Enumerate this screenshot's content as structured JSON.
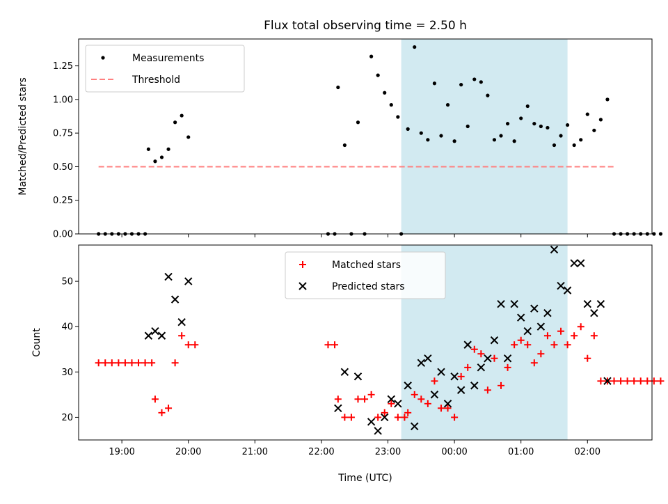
{
  "chart_data": {
    "title": "Flux total observing time = 2.50 h",
    "x_unit": "Time (UTC)",
    "x_ticks": [
      "19:00",
      "20:00",
      "21:00",
      "22:00",
      "23:00",
      "00:00",
      "01:00",
      "02:00"
    ],
    "highlight_span": {
      "start": "23:12",
      "end": "01:42",
      "color": "#add8e6"
    },
    "panels": [
      {
        "type": "scatter",
        "ylabel": "Matched/Predicted stars",
        "ylim": [
          0,
          1.45
        ],
        "yticks": [
          "0.00",
          "0.25",
          "0.50",
          "0.75",
          "1.00",
          "1.25"
        ],
        "legend_position": "upper-left",
        "series": [
          {
            "name": "Measurements",
            "marker": "dot",
            "color": "#000000",
            "points": [
              [
                "18:39",
                0
              ],
              [
                "18:45",
                0
              ],
              [
                "18:51",
                0
              ],
              [
                "18:57",
                0
              ],
              [
                "19:03",
                0
              ],
              [
                "19:09",
                0
              ],
              [
                "19:15",
                0
              ],
              [
                "19:21",
                0
              ],
              [
                "19:24",
                0.63
              ],
              [
                "19:30",
                0.54
              ],
              [
                "19:36",
                0.57
              ],
              [
                "19:42",
                0.63
              ],
              [
                "19:48",
                0.83
              ],
              [
                "19:54",
                0.88
              ],
              [
                "20:00",
                0.72
              ],
              [
                "22:06",
                0
              ],
              [
                "22:12",
                0
              ],
              [
                "22:15",
                1.09
              ],
              [
                "22:21",
                0.66
              ],
              [
                "22:27",
                0
              ],
              [
                "22:33",
                0.83
              ],
              [
                "22:39",
                0
              ],
              [
                "22:45",
                1.32
              ],
              [
                "22:51",
                1.18
              ],
              [
                "22:57",
                1.05
              ],
              [
                "23:03",
                0.96
              ],
              [
                "23:09",
                0.87
              ],
              [
                "23:12",
                0
              ],
              [
                "23:18",
                0.78
              ],
              [
                "23:24",
                1.39
              ],
              [
                "23:30",
                0.75
              ],
              [
                "23:36",
                0.7
              ],
              [
                "23:42",
                1.12
              ],
              [
                "23:48",
                0.73
              ],
              [
                "23:54",
                0.96
              ],
              [
                "00:00",
                0.69
              ],
              [
                "00:06",
                1.11
              ],
              [
                "00:12",
                0.8
              ],
              [
                "00:18",
                1.15
              ],
              [
                "00:24",
                1.13
              ],
              [
                "00:30",
                1.03
              ],
              [
                "00:36",
                0.7
              ],
              [
                "00:42",
                0.73
              ],
              [
                "00:48",
                0.82
              ],
              [
                "00:54",
                0.69
              ],
              [
                "01:00",
                0.86
              ],
              [
                "01:06",
                0.95
              ],
              [
                "01:12",
                0.82
              ],
              [
                "01:18",
                0.8
              ],
              [
                "01:24",
                0.79
              ],
              [
                "01:30",
                0.66
              ],
              [
                "01:36",
                0.73
              ],
              [
                "01:42",
                0.81
              ],
              [
                "01:48",
                0.66
              ],
              [
                "01:54",
                0.7
              ],
              [
                "02:00",
                0.89
              ],
              [
                "02:06",
                0.77
              ],
              [
                "02:12",
                0.85
              ],
              [
                "02:18",
                1.0
              ],
              [
                "02:24",
                0
              ],
              [
                "02:30",
                0
              ],
              [
                "02:36",
                0
              ],
              [
                "02:42",
                0
              ],
              [
                "02:48",
                0
              ],
              [
                "02:54",
                0
              ],
              [
                "03:00",
                0
              ],
              [
                "03:06",
                0
              ]
            ]
          },
          {
            "name": "Threshold",
            "type": "line",
            "style": "dashed",
            "color": "#ff8080",
            "points": [
              [
                "18:39",
                0.5
              ],
              [
                "02:24",
                0.5
              ]
            ]
          }
        ]
      },
      {
        "type": "scatter",
        "ylabel": "Count",
        "ylim": [
          15,
          58
        ],
        "yticks": [
          "20",
          "30",
          "40",
          "50"
        ],
        "legend_position": "upper-center",
        "series": [
          {
            "name": "Matched stars",
            "marker": "plus",
            "color": "#ff0000",
            "points": [
              [
                "18:39",
                32
              ],
              [
                "18:45",
                32
              ],
              [
                "18:51",
                32
              ],
              [
                "18:57",
                32
              ],
              [
                "19:03",
                32
              ],
              [
                "19:09",
                32
              ],
              [
                "19:15",
                32
              ],
              [
                "19:21",
                32
              ],
              [
                "19:27",
                32
              ],
              [
                "19:30",
                24
              ],
              [
                "19:36",
                21
              ],
              [
                "19:42",
                22
              ],
              [
                "19:48",
                32
              ],
              [
                "19:54",
                38
              ],
              [
                "20:00",
                36
              ],
              [
                "20:06",
                36
              ],
              [
                "22:06",
                36
              ],
              [
                "22:12",
                36
              ],
              [
                "22:15",
                24
              ],
              [
                "22:21",
                20
              ],
              [
                "22:27",
                20
              ],
              [
                "22:33",
                24
              ],
              [
                "22:39",
                24
              ],
              [
                "22:45",
                25
              ],
              [
                "22:51",
                20
              ],
              [
                "22:57",
                21
              ],
              [
                "23:03",
                23
              ],
              [
                "23:09",
                20
              ],
              [
                "23:15",
                20
              ],
              [
                "23:18",
                21
              ],
              [
                "23:24",
                25
              ],
              [
                "23:30",
                24
              ],
              [
                "23:36",
                23
              ],
              [
                "23:42",
                28
              ],
              [
                "23:48",
                22
              ],
              [
                "23:54",
                22
              ],
              [
                "00:00",
                20
              ],
              [
                "00:06",
                29
              ],
              [
                "00:12",
                31
              ],
              [
                "00:18",
                35
              ],
              [
                "00:24",
                34
              ],
              [
                "00:30",
                26
              ],
              [
                "00:36",
                33
              ],
              [
                "00:42",
                27
              ],
              [
                "00:48",
                31
              ],
              [
                "00:54",
                36
              ],
              [
                "01:00",
                37
              ],
              [
                "01:06",
                36
              ],
              [
                "01:12",
                32
              ],
              [
                "01:18",
                34
              ],
              [
                "01:24",
                38
              ],
              [
                "01:30",
                36
              ],
              [
                "01:36",
                39
              ],
              [
                "01:42",
                36
              ],
              [
                "01:48",
                38
              ],
              [
                "01:54",
                40
              ],
              [
                "02:00",
                33
              ],
              [
                "02:06",
                38
              ],
              [
                "02:12",
                28
              ],
              [
                "02:18",
                28
              ],
              [
                "02:24",
                28
              ],
              [
                "02:30",
                28
              ],
              [
                "02:36",
                28
              ],
              [
                "02:42",
                28
              ],
              [
                "02:48",
                28
              ],
              [
                "02:54",
                28
              ],
              [
                "03:00",
                28
              ],
              [
                "03:06",
                28
              ]
            ]
          },
          {
            "name": "Predicted stars",
            "marker": "x",
            "color": "#000000",
            "points": [
              [
                "19:24",
                38
              ],
              [
                "19:30",
                39
              ],
              [
                "19:36",
                38
              ],
              [
                "19:42",
                51
              ],
              [
                "19:48",
                46
              ],
              [
                "19:54",
                41
              ],
              [
                "20:00",
                50
              ],
              [
                "22:15",
                22
              ],
              [
                "22:21",
                30
              ],
              [
                "22:33",
                29
              ],
              [
                "22:45",
                19
              ],
              [
                "22:51",
                17
              ],
              [
                "22:57",
                20
              ],
              [
                "23:03",
                24
              ],
              [
                "23:09",
                23
              ],
              [
                "23:18",
                27
              ],
              [
                "23:24",
                18
              ],
              [
                "23:30",
                32
              ],
              [
                "23:36",
                33
              ],
              [
                "23:42",
                25
              ],
              [
                "23:48",
                30
              ],
              [
                "23:54",
                23
              ],
              [
                "00:00",
                29
              ],
              [
                "00:06",
                26
              ],
              [
                "00:12",
                36
              ],
              [
                "00:18",
                27
              ],
              [
                "00:24",
                31
              ],
              [
                "00:30",
                33
              ],
              [
                "00:36",
                37
              ],
              [
                "00:42",
                45
              ],
              [
                "00:48",
                33
              ],
              [
                "00:54",
                45
              ],
              [
                "01:00",
                42
              ],
              [
                "01:06",
                39
              ],
              [
                "01:12",
                44
              ],
              [
                "01:18",
                40
              ],
              [
                "01:24",
                43
              ],
              [
                "01:30",
                57
              ],
              [
                "01:36",
                49
              ],
              [
                "01:42",
                48
              ],
              [
                "01:48",
                54
              ],
              [
                "01:54",
                54
              ],
              [
                "02:00",
                45
              ],
              [
                "02:06",
                43
              ],
              [
                "02:12",
                45
              ],
              [
                "02:18",
                28
              ]
            ]
          }
        ]
      }
    ]
  }
}
